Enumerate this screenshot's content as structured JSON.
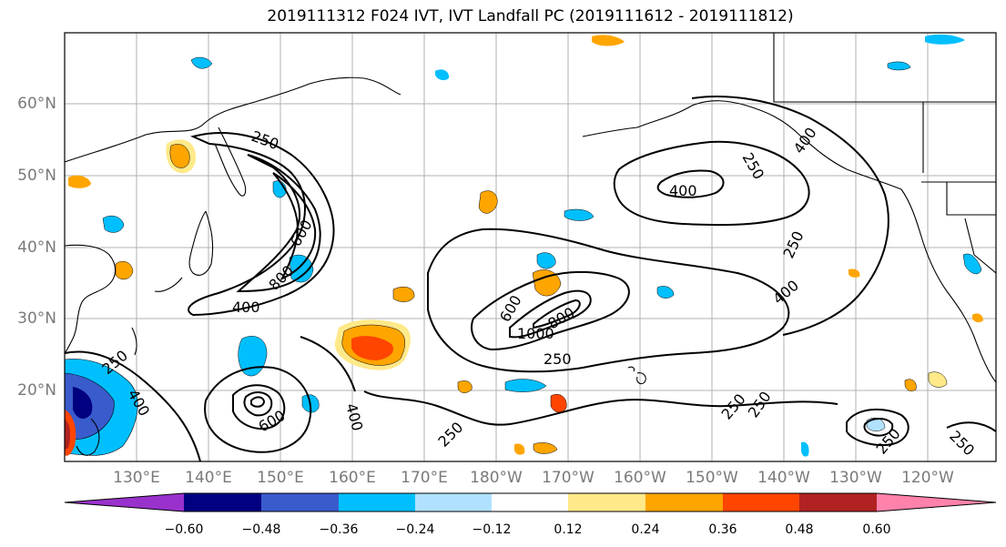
{
  "title": "2019111312 F024 IVT, IVT Landfall PC (2019111612 - 2019111812)",
  "map": {
    "lat_labels": [
      "60°N",
      "50°N",
      "40°N",
      "30°N",
      "20°N"
    ],
    "lon_labels": [
      "130°E",
      "140°E",
      "150°E",
      "160°E",
      "170°E",
      "180°W",
      "170°W",
      "160°W",
      "150°W",
      "140°W",
      "130°W",
      "120°W"
    ],
    "contour_labels": [
      "250",
      "250",
      "400",
      "400",
      "600",
      "800",
      "400",
      "250",
      "250",
      "400",
      "400",
      "600",
      "1000",
      "800",
      "250",
      "250",
      "600",
      "400",
      "250",
      "250",
      "250",
      "250"
    ]
  },
  "colorbar": {
    "tick_labels": [
      "−0.60",
      "−0.48",
      "−0.36",
      "−0.24",
      "−0.12",
      "0.12",
      "0.24",
      "0.36",
      "0.48",
      "0.60"
    ],
    "colors": [
      "#9932cc",
      "#000080",
      "#3a5bcc",
      "#00bfff",
      "#b0e2ff",
      "#ffffff",
      "#ffe989",
      "#ffa500",
      "#ff4500",
      "#b22222",
      "#ff82ab"
    ]
  }
}
